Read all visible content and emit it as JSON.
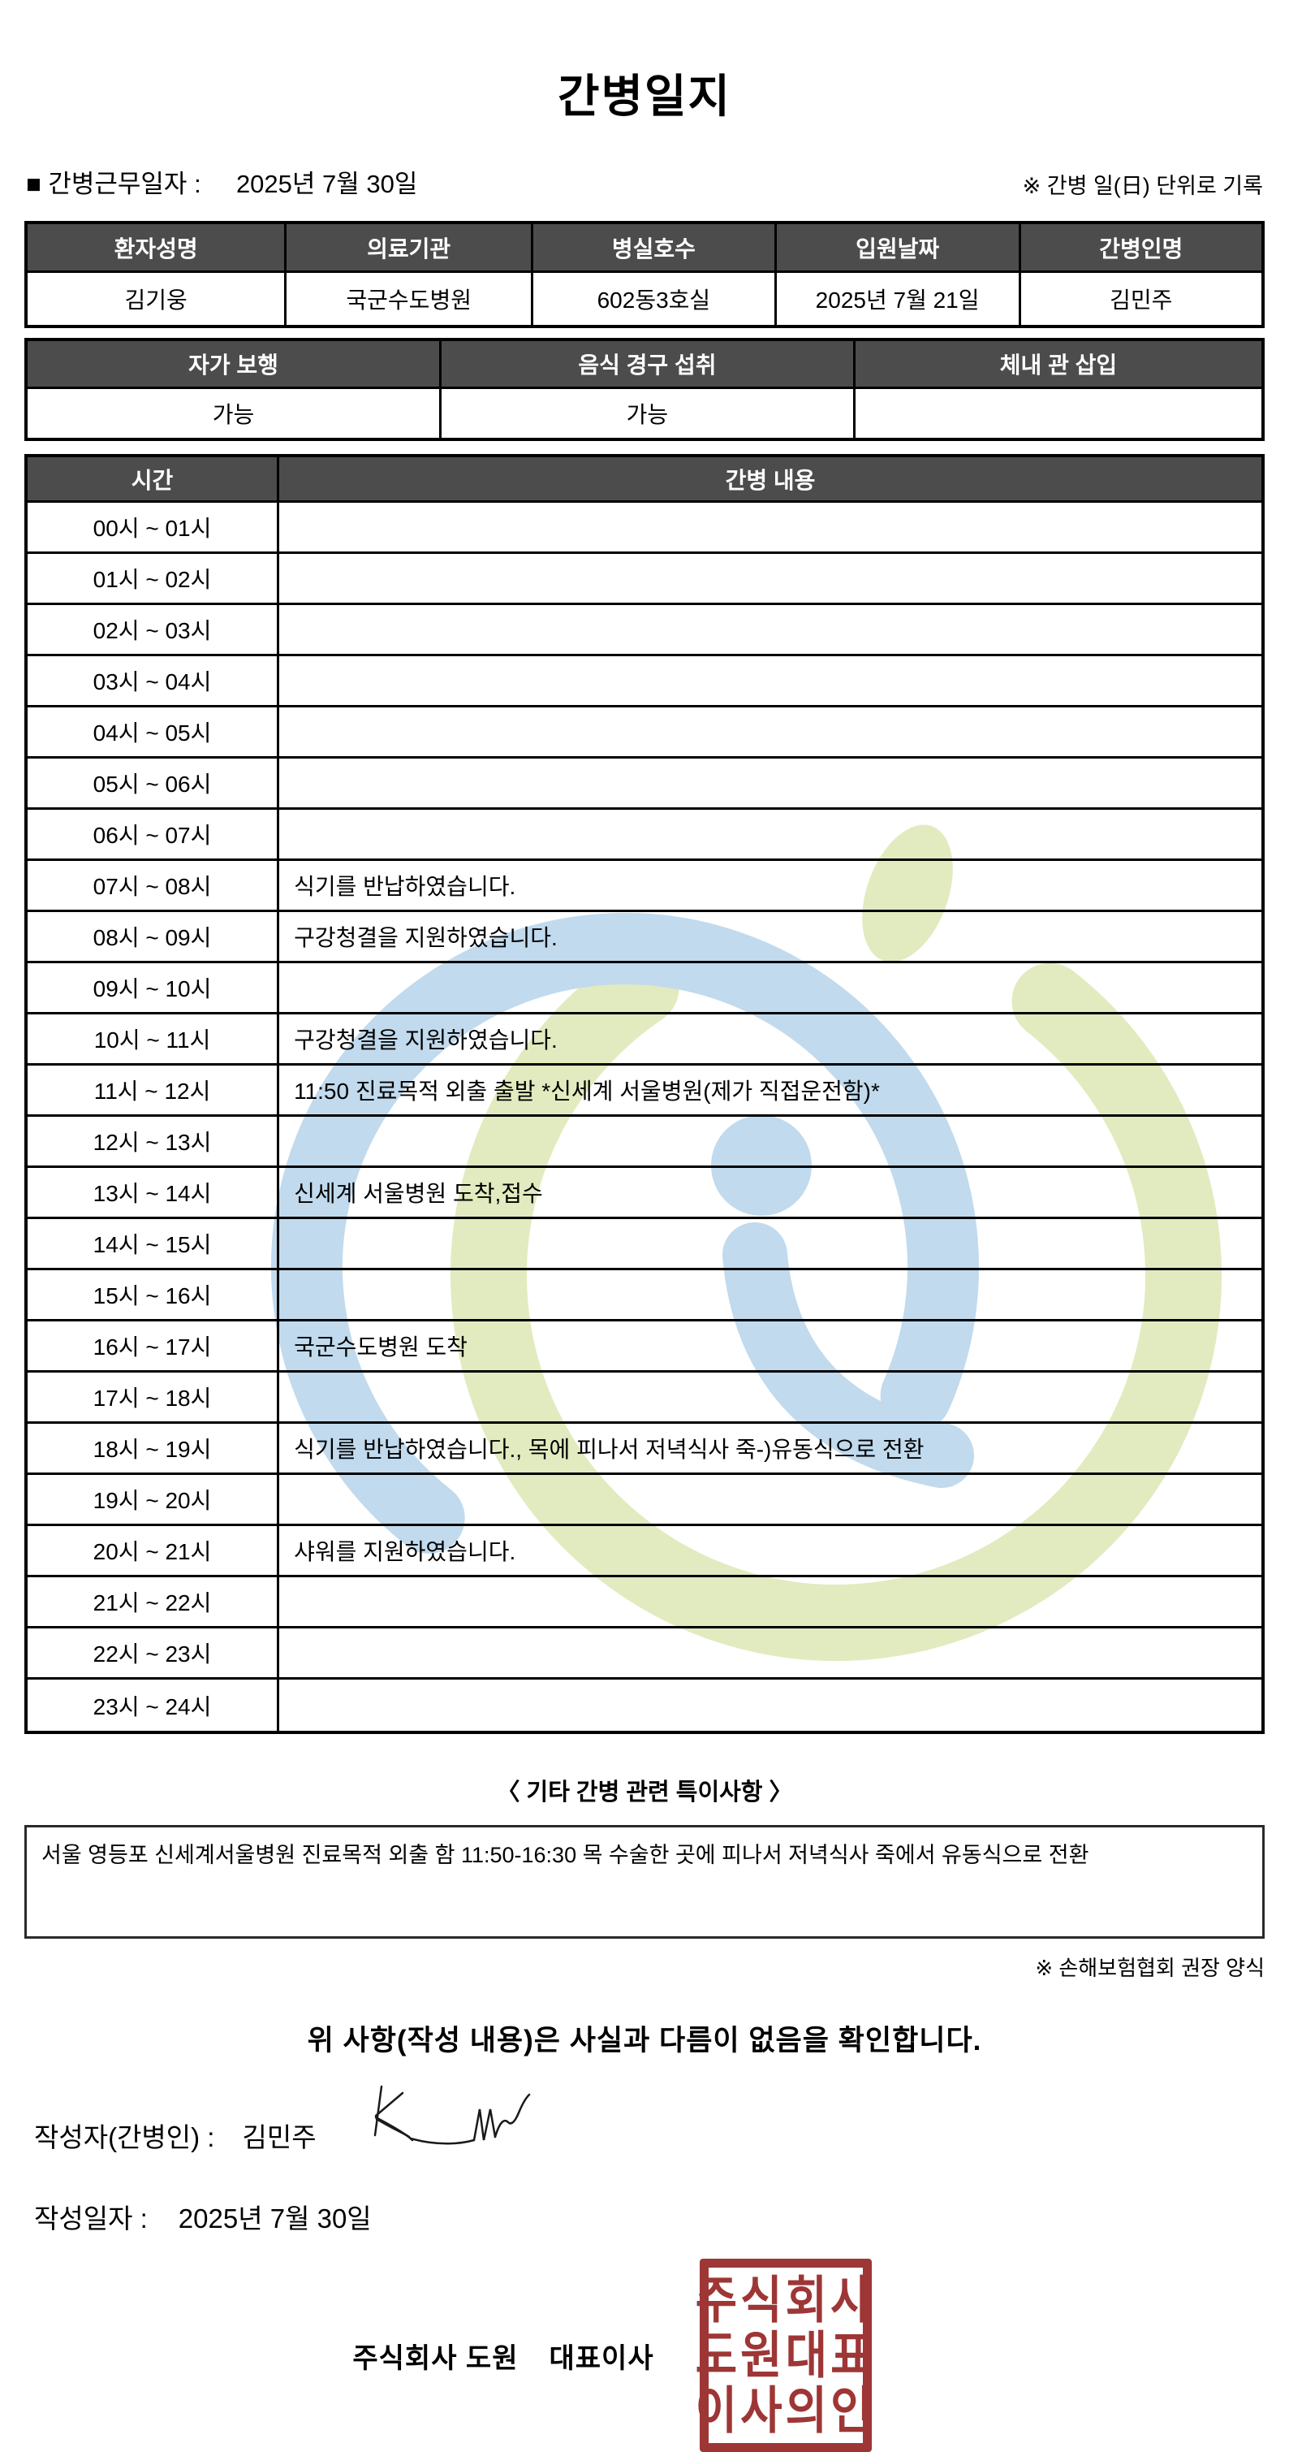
{
  "title": "간병일지",
  "meta": {
    "work_date_label": "■ 간병근무일자  :",
    "work_date": "2025년 7월 30일",
    "unit_note": "※ 간병 일(日) 단위로 기록"
  },
  "info_table": {
    "headers": [
      "환자성명",
      "의료기관",
      "병실호수",
      "입원날짜",
      "간병인명"
    ],
    "values": [
      "김기웅",
      "국군수도병원",
      "602동3호실",
      "2025년 7월 21일",
      "김민주"
    ]
  },
  "status_table": {
    "headers": [
      "자가 보행",
      "음식 경구 섭취",
      "체내 관 삽입"
    ],
    "values": [
      "가능",
      "가능",
      ""
    ]
  },
  "timetable": {
    "time_header": "시간",
    "content_header": "간병 내용",
    "rows": [
      {
        "time": "00시 ~ 01시",
        "content": ""
      },
      {
        "time": "01시 ~ 02시",
        "content": ""
      },
      {
        "time": "02시 ~ 03시",
        "content": ""
      },
      {
        "time": "03시 ~ 04시",
        "content": ""
      },
      {
        "time": "04시 ~ 05시",
        "content": ""
      },
      {
        "time": "05시 ~ 06시",
        "content": ""
      },
      {
        "time": "06시 ~ 07시",
        "content": ""
      },
      {
        "time": "07시 ~ 08시",
        "content": "식기를 반납하였습니다."
      },
      {
        "time": "08시 ~ 09시",
        "content": "구강청결을 지원하였습니다."
      },
      {
        "time": "09시 ~ 10시",
        "content": ""
      },
      {
        "time": "10시 ~ 11시",
        "content": "구강청결을 지원하였습니다."
      },
      {
        "time": "11시 ~ 12시",
        "content": "11:50 진료목적 외출 출발 *신세계 서울병원(제가 직접운전함)*"
      },
      {
        "time": "12시 ~ 13시",
        "content": ""
      },
      {
        "time": "13시 ~ 14시",
        "content": "신세계 서울병원 도착,접수"
      },
      {
        "time": "14시 ~ 15시",
        "content": ""
      },
      {
        "time": "15시 ~ 16시",
        "content": ""
      },
      {
        "time": "16시 ~ 17시",
        "content": "국군수도병원 도착"
      },
      {
        "time": "17시 ~ 18시",
        "content": ""
      },
      {
        "time": "18시 ~ 19시",
        "content": "식기를 반납하였습니다., 목에 피나서 저녁식사 죽-)유동식으로 전환"
      },
      {
        "time": "19시 ~ 20시",
        "content": ""
      },
      {
        "time": "20시 ~ 21시",
        "content": "샤워를 지원하였습니다."
      },
      {
        "time": "21시 ~ 22시",
        "content": ""
      },
      {
        "time": "22시 ~ 23시",
        "content": ""
      },
      {
        "time": "23시 ~ 24시",
        "content": ""
      }
    ]
  },
  "notes": {
    "section_title": "〈 기타 간병 관련 특이사항 〉",
    "content": "서울 영등포 신세계서울병원 진료목적 외출 함 11:50-16:30 목 수술한 곳에 피나서 저녁식사 죽에서 유동식으로 전환",
    "form_note": "※ 손해보험협회 권장 양식"
  },
  "footer": {
    "confirmation": "위 사항(작성 내용)은 사실과 다름이 없음을 확인합니다.",
    "writer_label": "작성자(간병인) :",
    "writer_name": "김민주",
    "date_label": "작성일자 :",
    "date_value": "2025년 7월 30일",
    "company": "주식회사 도원",
    "ceo_title": "대표이사",
    "stamp_lines": [
      "주식회사",
      "도원대표",
      "이사의인"
    ]
  },
  "colors": {
    "header_bg": "#4c4c4c",
    "stamp_red": "#9e3636",
    "watermark_green": "#dce8b4",
    "watermark_blue": "#b7d4eb"
  }
}
